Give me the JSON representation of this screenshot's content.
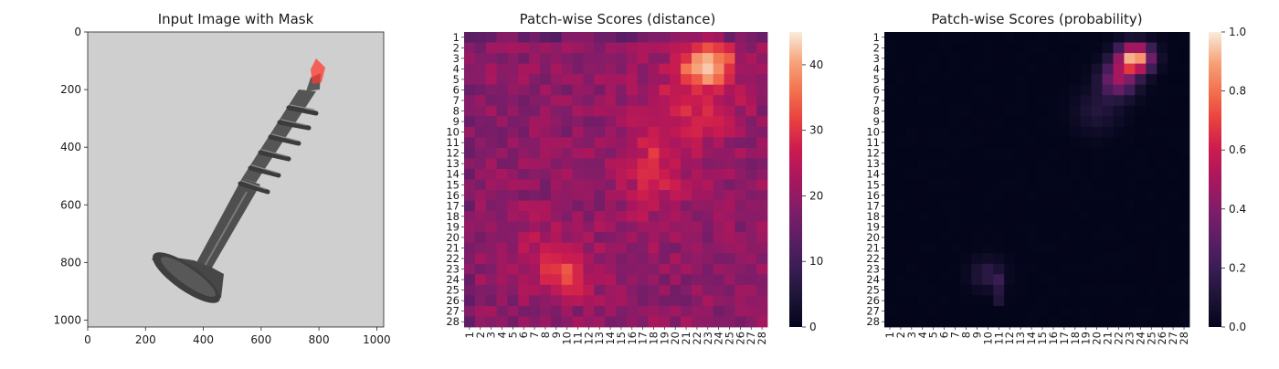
{
  "chart_data": [
    {
      "type": "image",
      "title": "Input Image with Mask",
      "xticks": [
        "0",
        "200",
        "400",
        "600",
        "800",
        "1000"
      ],
      "yticks": [
        "0",
        "200",
        "400",
        "600",
        "800",
        "1000"
      ],
      "xlim": [
        0,
        1024
      ],
      "ylim": [
        1024,
        0
      ],
      "description_elements": [
        "screw-object",
        "anomaly-mask"
      ],
      "colors": {
        "background": "#cfcfcf",
        "screw": "#4b4b4b",
        "mask": "#ff3b30"
      }
    },
    {
      "type": "heatmap",
      "title": "Patch-wise Scores (distance)",
      "xticks": [
        "1",
        "2",
        "3",
        "4",
        "5",
        "6",
        "7",
        "8",
        "9",
        "10",
        "11",
        "12",
        "13",
        "14",
        "15",
        "16",
        "17",
        "18",
        "19",
        "20",
        "21",
        "22",
        "23",
        "24",
        "25",
        "26",
        "27",
        "28"
      ],
      "yticks": [
        "1",
        "2",
        "3",
        "4",
        "5",
        "6",
        "7",
        "8",
        "9",
        "10",
        "11",
        "12",
        "13",
        "14",
        "15",
        "16",
        "17",
        "18",
        "19",
        "20",
        "21",
        "22",
        "23",
        "24",
        "25",
        "26",
        "27",
        "28"
      ],
      "colorbar": {
        "min": 0,
        "max": 45,
        "ticks": [
          "0",
          "10",
          "20",
          "30",
          "40"
        ],
        "tick_values": [
          0,
          10,
          20,
          30,
          40
        ],
        "colormap": "rocket"
      },
      "grid": false
    },
    {
      "type": "heatmap",
      "title": "Patch-wise Scores (probability)",
      "xticks": [
        "1",
        "2",
        "3",
        "4",
        "5",
        "6",
        "7",
        "8",
        "9",
        "10",
        "11",
        "12",
        "13",
        "14",
        "15",
        "16",
        "17",
        "18",
        "19",
        "20",
        "21",
        "22",
        "23",
        "24",
        "25",
        "26",
        "27",
        "28"
      ],
      "yticks": [
        "1",
        "2",
        "3",
        "4",
        "5",
        "6",
        "7",
        "8",
        "9",
        "10",
        "11",
        "12",
        "13",
        "14",
        "15",
        "16",
        "17",
        "18",
        "19",
        "20",
        "21",
        "22",
        "23",
        "24",
        "25",
        "26",
        "27",
        "28"
      ],
      "colorbar": {
        "min": 0.0,
        "max": 1.0,
        "ticks": [
          "0.0",
          "0.2",
          "0.4",
          "0.6",
          "0.8",
          "1.0"
        ],
        "tick_values": [
          0,
          0.2,
          0.4,
          0.6,
          0.8,
          1.0
        ],
        "colormap": "rocket"
      },
      "grid": false
    }
  ]
}
